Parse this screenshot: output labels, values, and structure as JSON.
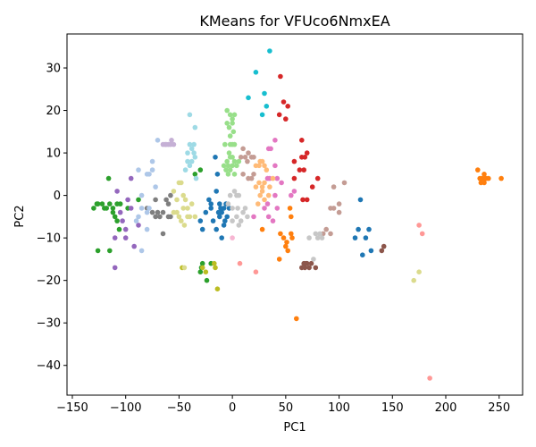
{
  "chart_data": {
    "type": "scatter",
    "title": "KMeans for VFUco6NmxEA",
    "xlabel": "PC1",
    "ylabel": "PC2",
    "xlim": [
      -155,
      272
    ],
    "ylim": [
      -47,
      38
    ],
    "xticks": [
      -150,
      -100,
      -50,
      0,
      50,
      100,
      150,
      200,
      250
    ],
    "yticks": [
      -40,
      -30,
      -20,
      -10,
      0,
      10,
      20,
      30
    ],
    "grid": false,
    "legend": "none",
    "series": [
      {
        "color": "#1f77b4",
        "points": [
          [
            -15,
            1
          ],
          [
            -12,
            -2
          ],
          [
            -10,
            -4
          ],
          [
            -5,
            -5
          ],
          [
            -8,
            -3
          ],
          [
            -20,
            -3
          ],
          [
            -25,
            -4
          ],
          [
            -30,
            -6
          ],
          [
            -28,
            -8
          ],
          [
            -15,
            -8
          ],
          [
            -12,
            -5
          ],
          [
            -3,
            -3
          ],
          [
            -18,
            -6
          ],
          [
            -8,
            -7
          ],
          [
            -6,
            -2
          ],
          [
            -14,
            5
          ],
          [
            -16,
            9
          ],
          [
            -11,
            -3
          ],
          [
            -22,
            -1
          ],
          [
            115,
            -10
          ],
          [
            118,
            -8
          ],
          [
            120,
            -1
          ],
          [
            125,
            -10
          ],
          [
            128,
            -8
          ],
          [
            122,
            -14
          ],
          [
            130,
            -13
          ],
          [
            -13,
            -4
          ],
          [
            -7,
            -6
          ],
          [
            -10,
            -10
          ],
          [
            -20,
            -2
          ]
        ]
      },
      {
        "color": "#ff7f0e",
        "points": [
          [
            230,
            6
          ],
          [
            232,
            4
          ],
          [
            234,
            4
          ],
          [
            236,
            3
          ],
          [
            238,
            4
          ],
          [
            240,
            4
          ],
          [
            252,
            4
          ],
          [
            233,
            3
          ],
          [
            236,
            5
          ],
          [
            28,
            -8
          ],
          [
            45,
            -9
          ],
          [
            48,
            -10
          ],
          [
            50,
            -12
          ],
          [
            52,
            -13
          ],
          [
            55,
            -9
          ],
          [
            56,
            -10
          ],
          [
            55,
            -5
          ],
          [
            54,
            -3
          ],
          [
            60,
            -29
          ],
          [
            44,
            -15
          ],
          [
            51,
            -11
          ],
          [
            237,
            4
          ]
        ]
      },
      {
        "color": "#2ca02c",
        "points": [
          [
            -130,
            -3
          ],
          [
            -126,
            -2
          ],
          [
            -122,
            -2
          ],
          [
            -118,
            -3
          ],
          [
            -115,
            -2
          ],
          [
            -112,
            -3
          ],
          [
            -108,
            -2
          ],
          [
            -105,
            -2
          ],
          [
            -110,
            -5
          ],
          [
            -108,
            -6
          ],
          [
            -106,
            -8
          ],
          [
            -112,
            -4
          ],
          [
            -116,
            4
          ],
          [
            -115,
            -13
          ],
          [
            -126,
            -13
          ],
          [
            -98,
            -3
          ],
          [
            -88,
            -1
          ],
          [
            -35,
            5
          ],
          [
            -30,
            6
          ],
          [
            -28,
            -16
          ],
          [
            -30,
            -18
          ],
          [
            -29,
            -17
          ],
          [
            -20,
            -16
          ],
          [
            -24,
            -20
          ],
          [
            -127,
            -2
          ],
          [
            -120,
            -3
          ]
        ]
      },
      {
        "color": "#d62728",
        "points": [
          [
            48,
            22
          ],
          [
            52,
            21
          ],
          [
            44,
            19
          ],
          [
            50,
            18
          ],
          [
            45,
            28
          ],
          [
            65,
            13
          ],
          [
            65,
            9
          ],
          [
            68,
            9
          ],
          [
            70,
            10
          ],
          [
            75,
            2
          ],
          [
            80,
            4
          ],
          [
            63,
            6
          ],
          [
            67,
            6
          ],
          [
            58,
            8
          ],
          [
            58,
            4
          ],
          [
            66,
            -1
          ],
          [
            70,
            -1
          ]
        ]
      },
      {
        "color": "#9467bd",
        "points": [
          [
            -108,
            1
          ],
          [
            -105,
            -4
          ],
          [
            -103,
            -6
          ],
          [
            -100,
            -8
          ],
          [
            -98,
            -1
          ],
          [
            -95,
            -3
          ],
          [
            -95,
            4
          ],
          [
            -110,
            -10
          ],
          [
            -100,
            -10
          ],
          [
            -110,
            -17
          ],
          [
            -92,
            -12
          ],
          [
            -88,
            -7
          ]
        ]
      },
      {
        "color": "#8c564b",
        "points": [
          [
            65,
            -17
          ],
          [
            67,
            -16
          ],
          [
            68,
            -17
          ],
          [
            70,
            -16
          ],
          [
            72,
            -17
          ],
          [
            74,
            -16
          ],
          [
            78,
            -17
          ],
          [
            140,
            -13
          ],
          [
            142,
            -12
          ],
          [
            69,
            -16
          ]
        ]
      },
      {
        "color": "#e377c2",
        "points": [
          [
            34,
            11
          ],
          [
            36,
            11
          ],
          [
            40,
            13
          ],
          [
            40,
            7
          ],
          [
            42,
            4
          ],
          [
            35,
            4
          ],
          [
            33,
            4
          ],
          [
            46,
            3
          ],
          [
            40,
            0
          ],
          [
            33,
            -2
          ],
          [
            34,
            -5
          ],
          [
            30,
            -3
          ],
          [
            42,
            -3
          ],
          [
            55,
            0
          ],
          [
            58,
            1
          ],
          [
            20,
            -5
          ],
          [
            38,
            -6
          ]
        ]
      },
      {
        "color": "#7f7f7f",
        "points": [
          [
            -80,
            -3
          ],
          [
            -75,
            -4
          ],
          [
            -72,
            -5
          ],
          [
            -70,
            -4
          ],
          [
            -68,
            -5
          ],
          [
            -65,
            -4
          ],
          [
            -60,
            -5
          ],
          [
            -58,
            -5
          ],
          [
            -62,
            -1
          ],
          [
            -60,
            -2
          ],
          [
            -65,
            -9
          ],
          [
            -72,
            -1
          ],
          [
            -58,
            0
          ]
        ]
      },
      {
        "color": "#bcbd22",
        "points": [
          [
            -28,
            -17
          ],
          [
            -17,
            -16
          ],
          [
            -16,
            -17
          ],
          [
            -14,
            -22
          ],
          [
            -47,
            -17
          ],
          [
            -25,
            -18
          ]
        ]
      },
      {
        "color": "#17becf",
        "points": [
          [
            30,
            24
          ],
          [
            35,
            34
          ],
          [
            22,
            29
          ],
          [
            15,
            23
          ],
          [
            28,
            19
          ],
          [
            32,
            21
          ]
        ]
      },
      {
        "color": "#aec7e8",
        "points": [
          [
            -85,
            0
          ],
          [
            -80,
            5
          ],
          [
            -78,
            5
          ],
          [
            -75,
            6
          ],
          [
            -70,
            13
          ],
          [
            -88,
            -5
          ],
          [
            -85,
            -3
          ],
          [
            -80,
            -8
          ],
          [
            -90,
            -6
          ],
          [
            -85,
            -13
          ],
          [
            -72,
            2
          ],
          [
            -78,
            -3
          ],
          [
            -80,
            -4
          ],
          [
            -88,
            6
          ],
          [
            -75,
            8
          ]
        ]
      },
      {
        "color": "#ffbb78",
        "points": [
          [
            22,
            7
          ],
          [
            25,
            7
          ],
          [
            26,
            8
          ],
          [
            28,
            8
          ],
          [
            30,
            7
          ],
          [
            32,
            6
          ],
          [
            25,
            3
          ],
          [
            28,
            2
          ],
          [
            30,
            3
          ],
          [
            22,
            2
          ],
          [
            26,
            0
          ],
          [
            28,
            1
          ],
          [
            30,
            -1
          ],
          [
            34,
            0
          ],
          [
            24,
            -2
          ],
          [
            35,
            2
          ],
          [
            38,
            4
          ]
        ]
      },
      {
        "color": "#98df8a",
        "points": [
          [
            -5,
            20
          ],
          [
            -2,
            19
          ],
          [
            0,
            18
          ],
          [
            2,
            19
          ],
          [
            -5,
            17
          ],
          [
            -3,
            16
          ],
          [
            0,
            17
          ],
          [
            -2,
            12
          ],
          [
            0,
            12
          ],
          [
            2,
            12
          ],
          [
            -3,
            10
          ],
          [
            -2,
            9
          ],
          [
            0,
            9
          ],
          [
            2,
            8
          ],
          [
            -5,
            8
          ],
          [
            -4,
            7
          ],
          [
            -6,
            6
          ],
          [
            -2,
            6
          ],
          [
            0,
            7
          ],
          [
            -8,
            7
          ],
          [
            -4,
            5
          ],
          [
            2,
            5
          ],
          [
            4,
            7
          ],
          [
            6,
            8
          ],
          [
            -2,
            14
          ],
          [
            1,
            15
          ],
          [
            -7,
            12
          ]
        ]
      },
      {
        "color": "#ff9896",
        "points": [
          [
            175,
            -7
          ],
          [
            178,
            -9
          ],
          [
            185,
            -43
          ],
          [
            22,
            -18
          ],
          [
            7,
            -16
          ]
        ]
      },
      {
        "color": "#c5b0d5",
        "points": [
          [
            -65,
            12
          ],
          [
            -60,
            12
          ],
          [
            -58,
            12
          ],
          [
            -55,
            12
          ],
          [
            -62,
            12
          ],
          [
            -57,
            13
          ],
          [
            -63,
            12
          ]
        ]
      },
      {
        "color": "#c49c94",
        "points": [
          [
            10,
            11
          ],
          [
            15,
            10
          ],
          [
            18,
            9
          ],
          [
            20,
            9
          ],
          [
            12,
            9
          ],
          [
            14,
            8
          ],
          [
            8,
            9
          ],
          [
            10,
            5
          ],
          [
            15,
            4
          ],
          [
            18,
            4
          ],
          [
            20,
            5
          ],
          [
            95,
            2
          ],
          [
            100,
            -2
          ],
          [
            105,
            3
          ],
          [
            92,
            -3
          ],
          [
            95,
            -3
          ],
          [
            100,
            -4
          ],
          [
            88,
            -8
          ],
          [
            92,
            -9
          ],
          [
            85,
            -9
          ]
        ]
      },
      {
        "color": "#f7b6d2",
        "points": [
          [
            0,
            -10
          ]
        ]
      },
      {
        "color": "#c7c7c7",
        "points": [
          [
            -2,
            0
          ],
          [
            2,
            1
          ],
          [
            4,
            0
          ],
          [
            6,
            0
          ],
          [
            0,
            -3
          ],
          [
            5,
            -3
          ],
          [
            0,
            -6
          ],
          [
            4,
            -5
          ],
          [
            6,
            -7
          ],
          [
            8,
            -6
          ],
          [
            10,
            -4
          ],
          [
            -4,
            -2
          ],
          [
            12,
            -3
          ],
          [
            14,
            -5
          ],
          [
            80,
            -10
          ],
          [
            82,
            -9
          ],
          [
            84,
            -10
          ],
          [
            78,
            -9
          ],
          [
            72,
            -10
          ],
          [
            76,
            -15
          ]
        ]
      },
      {
        "color": "#dbdb8d",
        "points": [
          [
            -55,
            -4
          ],
          [
            -52,
            -4
          ],
          [
            -50,
            -5
          ],
          [
            -48,
            -6
          ],
          [
            -45,
            -7
          ],
          [
            -42,
            -5
          ],
          [
            -40,
            -5
          ],
          [
            -44,
            -1
          ],
          [
            -46,
            0
          ],
          [
            -48,
            3
          ],
          [
            -52,
            -1
          ],
          [
            -46,
            -3
          ],
          [
            -42,
            -3
          ],
          [
            -55,
            1
          ],
          [
            -50,
            3
          ],
          [
            -35,
            -5
          ],
          [
            -38,
            -2
          ],
          [
            -45,
            -17
          ],
          [
            170,
            -20
          ],
          [
            175,
            -18
          ]
        ]
      },
      {
        "color": "#9edae5",
        "points": [
          [
            -40,
            19
          ],
          [
            -35,
            16
          ],
          [
            -40,
            12
          ],
          [
            -38,
            11
          ],
          [
            -42,
            10
          ],
          [
            -36,
            10
          ],
          [
            -35,
            9
          ],
          [
            -40,
            7
          ],
          [
            -38,
            8
          ],
          [
            -34,
            4
          ],
          [
            -42,
            8
          ],
          [
            -44,
            6
          ],
          [
            -36,
            12
          ]
        ]
      }
    ]
  }
}
